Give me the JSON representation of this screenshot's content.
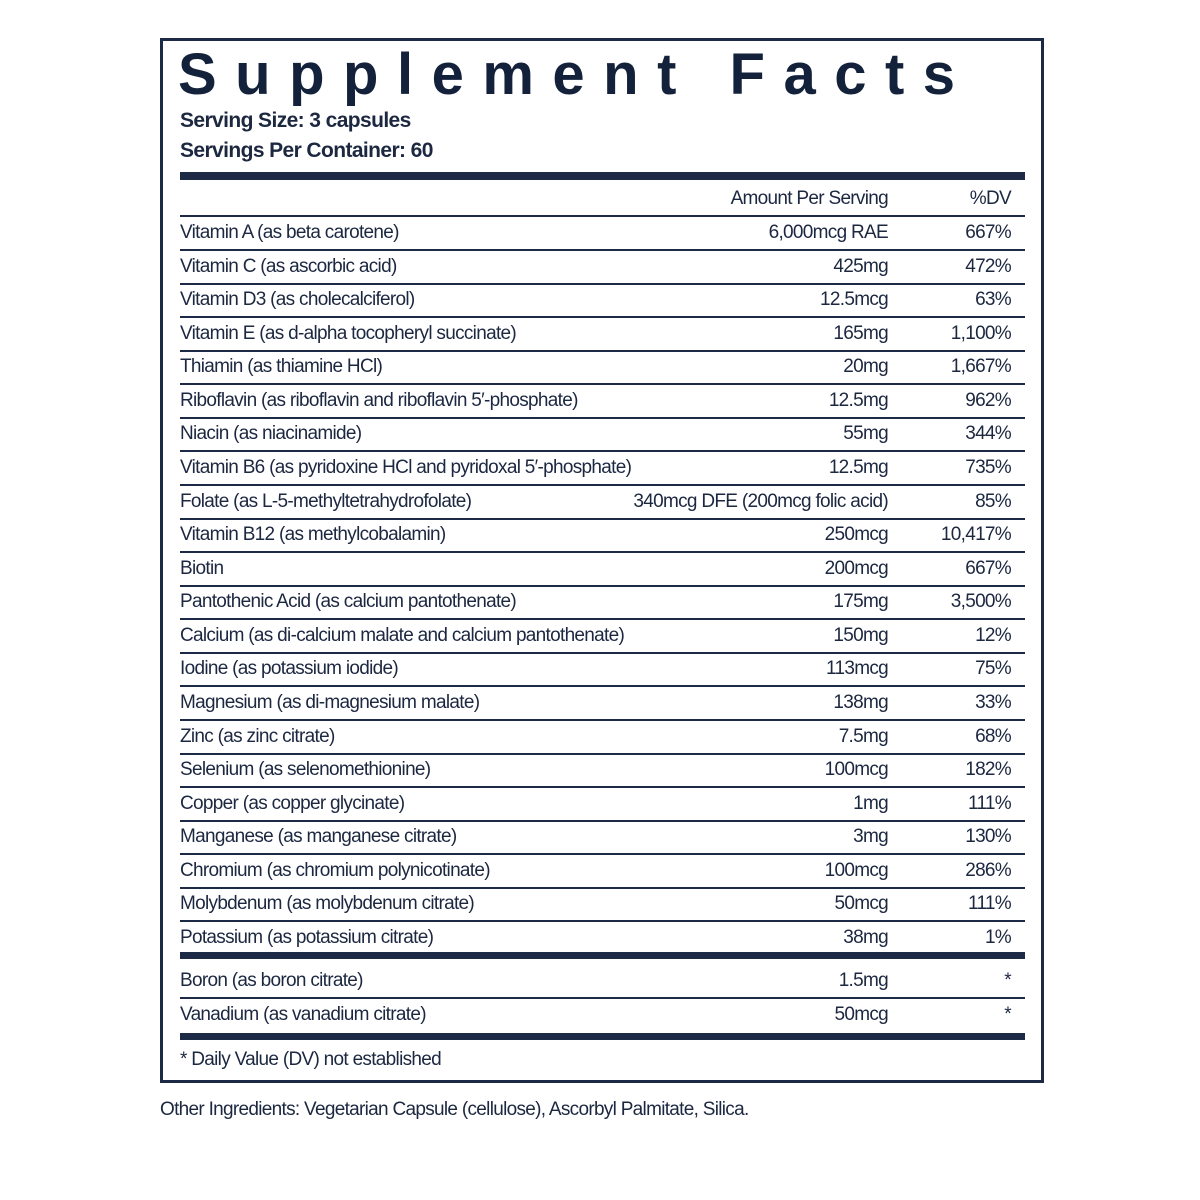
{
  "title": "Supplement Facts",
  "serving_size": "Serving Size: 3 capsules",
  "servings_per_container": "Servings Per Container: 60",
  "header": {
    "amount": "Amount Per Serving",
    "dv": "%DV"
  },
  "rows": [
    {
      "name": "Vitamin A (as beta carotene)",
      "amount": "6,000mcg RAE",
      "dv": "667%"
    },
    {
      "name": "Vitamin C (as ascorbic acid)",
      "amount": "425mg",
      "dv": "472%"
    },
    {
      "name": "Vitamin D3 (as cholecalciferol)",
      "amount": "12.5mcg",
      "dv": "63%"
    },
    {
      "name": "Vitamin E (as d-alpha tocopheryl succinate)",
      "amount": "165mg",
      "dv": "1,100%"
    },
    {
      "name": "Thiamin (as thiamine HCl)",
      "amount": "20mg",
      "dv": "1,667%"
    },
    {
      "name": "Riboflavin (as riboflavin and riboflavin 5′-phosphate)",
      "amount": "12.5mg",
      "dv": "962%"
    },
    {
      "name": "Niacin (as niacinamide)",
      "amount": "55mg",
      "dv": "344%"
    },
    {
      "name": "Vitamin B6 (as pyridoxine HCl and pyridoxal 5′-phosphate)",
      "amount": "12.5mg",
      "dv": "735%"
    },
    {
      "name": "Folate (as L-5-methyltetrahydrofolate)",
      "amount": "340mcg DFE (200mcg folic acid)",
      "dv": "85%"
    },
    {
      "name": "Vitamin B12 (as methylcobalamin)",
      "amount": "250mcg",
      "dv": "10,417%"
    },
    {
      "name": "Biotin",
      "amount": "200mcg",
      "dv": "667%"
    },
    {
      "name": "Pantothenic Acid (as calcium pantothenate)",
      "amount": "175mg",
      "dv": "3,500%"
    },
    {
      "name": "Calcium (as di-calcium malate and calcium pantothenate)",
      "amount": "150mg",
      "dv": "12%"
    },
    {
      "name": "Iodine (as potassium iodide)",
      "amount": "113mcg",
      "dv": "75%"
    },
    {
      "name": "Magnesium (as di-magnesium malate)",
      "amount": "138mg",
      "dv": "33%"
    },
    {
      "name": "Zinc (as zinc citrate)",
      "amount": "7.5mg",
      "dv": "68%"
    },
    {
      "name": "Selenium (as selenomethionine)",
      "amount": "100mcg",
      "dv": "182%"
    },
    {
      "name": "Copper (as copper glycinate)",
      "amount": "1mg",
      "dv": "111%"
    },
    {
      "name": "Manganese (as manganese citrate)",
      "amount": "3mg",
      "dv": "130%"
    },
    {
      "name": "Chromium (as chromium polynicotinate)",
      "amount": "100mcg",
      "dv": "286%"
    },
    {
      "name": "Molybdenum (as molybdenum citrate)",
      "amount": "50mcg",
      "dv": "111%"
    },
    {
      "name": "Potassium (as potassium citrate)",
      "amount": "38mg",
      "dv": "1%"
    }
  ],
  "other_rows": [
    {
      "name": "Boron (as boron citrate)",
      "amount": "1.5mg",
      "dv": "*"
    },
    {
      "name": "Vanadium (as vanadium citrate)",
      "amount": "50mcg",
      "dv": "*"
    }
  ],
  "footnote": "* Daily Value (DV) not established",
  "other_ingredients": "Other Ingredients: Vegetarian Capsule (cellulose), Ascorbyl Palmitate, Silica."
}
